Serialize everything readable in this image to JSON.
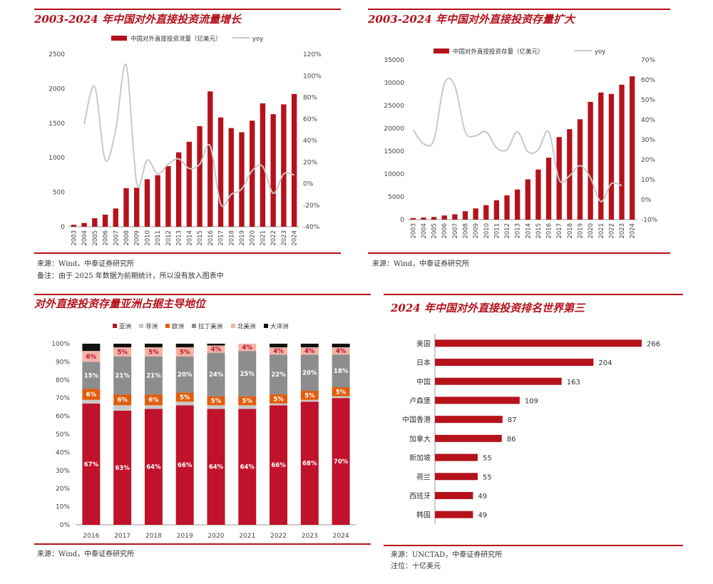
{
  "colors": {
    "accent": "#b5121b",
    "line": "#c8c8c8",
    "asia": "#c0122b",
    "africa": "#c9c9c9",
    "europe": "#e15d0c",
    "latam": "#8d8d8d",
    "namerica": "#f2b3a6",
    "oceania": "#111111"
  },
  "panel1": {
    "title": "2003-2024 年中国对外直接投资流量增长",
    "source": "来源：Wind，中泰证券研究所",
    "remark": "备注：由于 2025 年数据为前期统计，所以没有放入图表中"
  },
  "panel2": {
    "title": "2003-2024 年中国对外直接投资存量扩大",
    "source": "来源：Wind，中泰证券研究所"
  },
  "panel3": {
    "title": "对外直接投资存量亚洲占据主导地位",
    "source": "来源：Wind，中泰证券研究所"
  },
  "panel4": {
    "title": "2024 年中国对外直接投资排名世界第三",
    "source": "来源：UNCTAD，中泰证券研究所",
    "remark": "注位：十亿美元"
  },
  "chart_data": [
    {
      "type": "bar",
      "title": "2003-2024 年中国对外直接投资流量增长",
      "legend_position": "top",
      "categories": [
        "2003",
        "2004",
        "2005",
        "2006",
        "2007",
        "2008",
        "2009",
        "2010",
        "2011",
        "2012",
        "2013",
        "2014",
        "2015",
        "2016",
        "2017",
        "2018",
        "2019",
        "2020",
        "2021",
        "2022",
        "2023",
        "2024"
      ],
      "series": [
        {
          "name": "中国对外直接投资流量（亿美元）",
          "kind": "bar",
          "axis": "left",
          "values": [
            29,
            55,
            123,
            176,
            265,
            559,
            565,
            688,
            747,
            878,
            1078,
            1231,
            1457,
            1961,
            1583,
            1430,
            1369,
            1537,
            1788,
            1631,
            1773,
            1923
          ]
        },
        {
          "name": "yoy",
          "kind": "line",
          "axis": "right",
          "values": [
            null,
            55,
            90,
            22,
            50,
            110,
            1,
            22,
            9,
            18,
            23,
            14,
            18,
            35,
            -19,
            -10,
            -5,
            12,
            16,
            -9,
            9,
            8
          ]
        }
      ],
      "ylim_left": [
        0,
        2500
      ],
      "yticks_left": [
        0,
        500,
        1000,
        1500,
        2000,
        2500
      ],
      "ylim_right": [
        -40,
        120
      ],
      "yticks_right": [
        "-40%",
        "-20%",
        "0%",
        "20%",
        "40%",
        "60%",
        "80%",
        "100%",
        "120%"
      ]
    },
    {
      "type": "bar",
      "title": "2003-2024 年中国对外直接投资存量扩大",
      "legend_position": "top",
      "categories": [
        "2003",
        "2004",
        "2005",
        "2006",
        "2007",
        "2008",
        "2009",
        "2010",
        "2011",
        "2012",
        "2013",
        "2014",
        "2015",
        "2016",
        "2017",
        "2018",
        "2019",
        "2020",
        "2021",
        "2022",
        "2023",
        "2024"
      ],
      "series": [
        {
          "name": "中国对外直接投资存量（亿美元）",
          "kind": "bar",
          "axis": "left",
          "values": [
            332,
            448,
            572,
            906,
            1179,
            1840,
            2458,
            3172,
            4248,
            5319,
            6605,
            8826,
            10979,
            13574,
            18090,
            19823,
            21989,
            25807,
            27852,
            27548,
            29554,
            31400
          ]
        },
        {
          "name": "yoy",
          "kind": "line",
          "axis": "right",
          "values": [
            35,
            28,
            30,
            58,
            57,
            34,
            32,
            34,
            26,
            25,
            34,
            24,
            25,
            34,
            10,
            12,
            17,
            11,
            -1,
            8,
            7,
            null
          ]
        }
      ],
      "ylim_left": [
        0,
        35000
      ],
      "yticks_left": [
        0,
        5000,
        10000,
        15000,
        20000,
        25000,
        30000,
        35000
      ],
      "ylim_right": [
        -10,
        70
      ],
      "yticks_right": [
        "-10%",
        "0%",
        "10%",
        "20%",
        "30%",
        "40%",
        "50%",
        "60%",
        "70%"
      ]
    },
    {
      "type": "bar",
      "stacked": true,
      "title": "对外直接投资存量亚洲占据主导地位",
      "legend_position": "top",
      "categories": [
        "2016",
        "2017",
        "2018",
        "2019",
        "2020",
        "2021",
        "2022",
        "2023",
        "2024"
      ],
      "series": [
        {
          "name": "亚洲",
          "values": [
            67,
            63,
            64,
            66,
            64,
            64,
            66,
            68,
            70
          ],
          "labels": [
            "67%",
            "63%",
            "64%",
            "66%",
            "64%",
            "64%",
            "66%",
            "68%",
            "70%"
          ]
        },
        {
          "name": "非洲",
          "values": [
            2,
            3,
            2,
            2,
            2,
            2,
            1,
            1,
            1
          ],
          "labels": []
        },
        {
          "name": "欧洲",
          "values": [
            6,
            6,
            6,
            5,
            5,
            5,
            5,
            5,
            5
          ],
          "labels": [
            "6%",
            "6%",
            "6%",
            "5%",
            "5%",
            "5%",
            "5%",
            "5%",
            "5%"
          ]
        },
        {
          "name": "拉丁美洲",
          "values": [
            15,
            21,
            21,
            20,
            24,
            25,
            22,
            20,
            18
          ],
          "labels": [
            "15%",
            "21%",
            "21%",
            "20%",
            "24%",
            "25%",
            "22%",
            "20%",
            "18%"
          ]
        },
        {
          "name": "北美洲",
          "values": [
            6,
            5,
            5,
            5,
            4,
            4,
            4,
            4,
            4
          ],
          "labels": [
            "6%",
            "5%",
            "5%",
            "5%",
            "4%",
            "4%",
            "4%",
            "4%",
            "4%"
          ]
        },
        {
          "name": "大洋洲",
          "values": [
            4,
            2,
            2,
            2,
            1,
            0,
            2,
            2,
            2
          ],
          "labels": []
        }
      ],
      "ylim": [
        0,
        100
      ],
      "yticks": [
        "0%",
        "10%",
        "20%",
        "30%",
        "40%",
        "50%",
        "60%",
        "70%",
        "80%",
        "90%",
        "100%"
      ]
    },
    {
      "type": "bar",
      "orientation": "horizontal",
      "title": "2024 年中国对外直接投资排名世界第三",
      "categories": [
        "美国",
        "日本",
        "中国",
        "卢森堡",
        "中国香港",
        "加拿大",
        "新加坡",
        "荷兰",
        "西班牙",
        "韩国"
      ],
      "values": [
        266,
        204,
        163,
        109,
        87,
        86,
        55,
        55,
        49,
        49
      ],
      "labels": [
        "266",
        "204",
        "163",
        "109",
        "87",
        "86",
        "55",
        "55",
        "49",
        "49"
      ]
    }
  ]
}
